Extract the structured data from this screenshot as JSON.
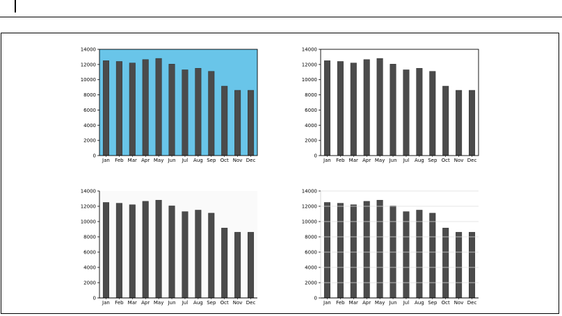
{
  "chart_data": [
    {
      "type": "bar",
      "style": "blue-background",
      "background_color": "#69c5e9",
      "bar_color": "#4b4b4b",
      "grid": false,
      "categories": [
        "Jan",
        "Feb",
        "Mar",
        "Apr",
        "May",
        "Jun",
        "Jul",
        "Aug",
        "Sep",
        "Oct",
        "Nov",
        "Dec"
      ],
      "values": [
        12500,
        12400,
        12200,
        12650,
        12800,
        12050,
        11300,
        11500,
        11100,
        9150,
        8600,
        8600
      ],
      "ylim": [
        0,
        14000
      ],
      "yticks": [
        "0",
        "2000",
        "4000",
        "6000",
        "8000",
        "10000",
        "12000",
        "14000"
      ]
    },
    {
      "type": "bar",
      "style": "white-background",
      "background_color": "#ffffff",
      "bar_color": "#4b4b4b",
      "grid": false,
      "categories": [
        "Jan",
        "Feb",
        "Mar",
        "Apr",
        "May",
        "Jun",
        "Jul",
        "Aug",
        "Sep",
        "Oct",
        "Nov",
        "Dec"
      ],
      "values": [
        12500,
        12400,
        12200,
        12650,
        12800,
        12050,
        11300,
        11500,
        11100,
        9150,
        8600,
        8600
      ],
      "ylim": [
        0,
        14000
      ],
      "yticks": [
        "0",
        "2000",
        "4000",
        "6000",
        "8000",
        "10000",
        "12000",
        "14000"
      ]
    },
    {
      "type": "bar",
      "style": "minimal-axes",
      "background_color": "#fafafa",
      "bar_color": "#4b4b4b",
      "grid": false,
      "categories": [
        "Jan",
        "Feb",
        "Mar",
        "Apr",
        "May",
        "Jun",
        "Jul",
        "Aug",
        "Sep",
        "Oct",
        "Nov",
        "Dec"
      ],
      "values": [
        12500,
        12400,
        12200,
        12650,
        12800,
        12050,
        11300,
        11500,
        11100,
        9150,
        8600,
        8600
      ],
      "ylim": [
        0,
        14000
      ],
      "yticks": [
        "0",
        "2000",
        "4000",
        "6000",
        "8000",
        "10000",
        "12000",
        "14000"
      ]
    },
    {
      "type": "bar",
      "style": "white-gridlines",
      "background_color": "#ffffff",
      "bar_color": "#4b4b4b",
      "grid": true,
      "grid_color": "#dcdcdc",
      "categories": [
        "Jan",
        "Feb",
        "Mar",
        "Apr",
        "May",
        "Jun",
        "Jul",
        "Aug",
        "Sep",
        "Oct",
        "Nov",
        "Dec"
      ],
      "values": [
        12500,
        12400,
        12200,
        12650,
        12800,
        12050,
        11300,
        11500,
        11100,
        9150,
        8600,
        8600
      ],
      "ylim": [
        0,
        14000
      ],
      "yticks": [
        "0",
        "2000",
        "4000",
        "6000",
        "8000",
        "10000",
        "12000",
        "14000"
      ]
    }
  ]
}
